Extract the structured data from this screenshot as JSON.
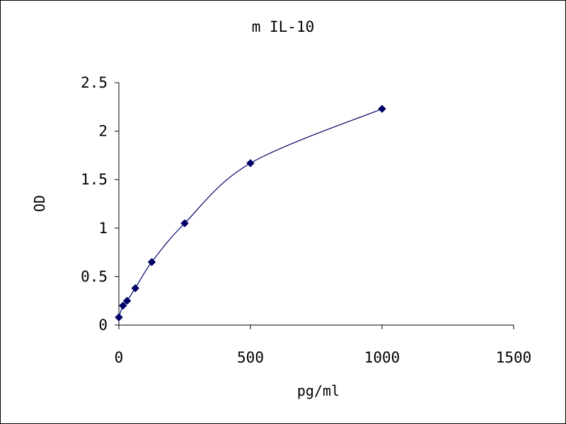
{
  "chart_data": {
    "type": "scatter",
    "title": "m IL-10",
    "xlabel": "pg/ml",
    "ylabel": "OD",
    "xlim": [
      0,
      1500
    ],
    "ylim": [
      0,
      2.5
    ],
    "xticks": [
      0,
      500,
      1000,
      1500
    ],
    "xtick_labels": [
      "0",
      "500",
      "1000",
      "1500"
    ],
    "yticks": [
      0,
      0.5,
      1,
      1.5,
      2,
      2.5
    ],
    "ytick_labels": [
      "0",
      "0.5",
      "1",
      "1.5",
      "2",
      "2.5"
    ],
    "grid": false,
    "legend": "none",
    "series": [
      {
        "smooth_line": true,
        "marker": "diamond",
        "color": "#000066",
        "x": [
          0,
          15.6,
          31.2,
          62.5,
          125,
          250,
          500,
          1000
        ],
        "y": [
          0.08,
          0.2,
          0.25,
          0.38,
          0.65,
          1.05,
          1.67,
          2.23
        ]
      }
    ]
  }
}
